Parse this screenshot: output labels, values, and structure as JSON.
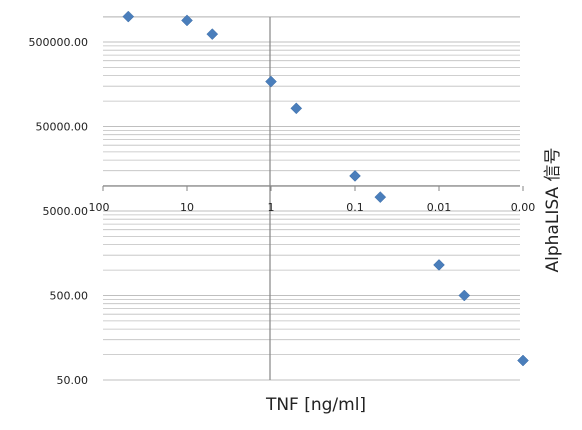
{
  "chart_data": {
    "type": "scatter",
    "title": "",
    "xlabel": "TNF [ng/ml]",
    "ylabel": "AlphaLISA 信号",
    "x_scale": "log",
    "x_reversed": true,
    "x_ticks": [
      "100",
      "10",
      "1",
      "0.1",
      "0.01",
      "0.00"
    ],
    "y_scale": "log",
    "y_ticks": [
      "500000.00",
      "50000.00",
      "5000.00",
      "500.00",
      "50.00"
    ],
    "ylim": [
      50,
      1000000
    ],
    "grid": true,
    "legend": "none",
    "marker": "diamond",
    "colors": {
      "marker": "#4a7ebb",
      "grid": "#bfbfbf",
      "axis": "#868686"
    },
    "points": [
      {
        "x": 50,
        "y": 1000000
      },
      {
        "x": 10,
        "y": 900000
      },
      {
        "x": 5,
        "y": 620000
      },
      {
        "x": 1,
        "y": 170000
      },
      {
        "x": 0.5,
        "y": 82000
      },
      {
        "x": 0.1,
        "y": 13000
      },
      {
        "x": 0.05,
        "y": 7300
      },
      {
        "x": 0.01,
        "y": 1150
      },
      {
        "x": 0.005,
        "y": 500
      },
      {
        "x": 0.001,
        "y": 85
      }
    ]
  }
}
